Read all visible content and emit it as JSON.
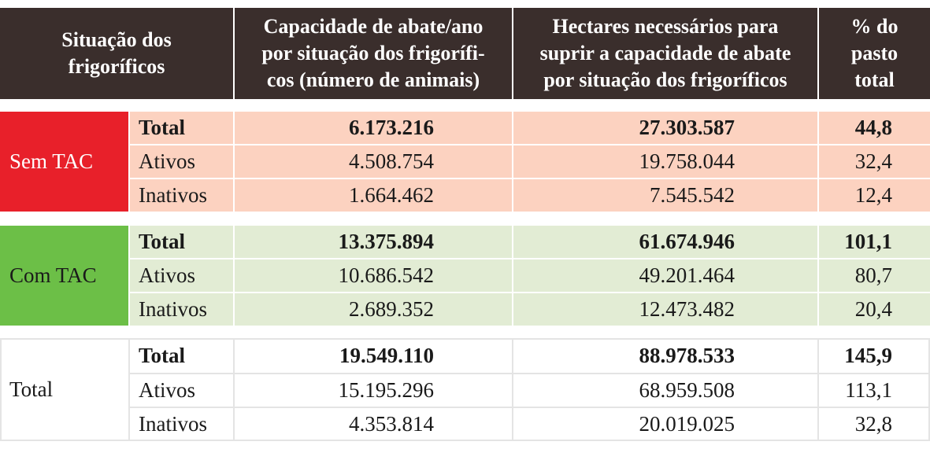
{
  "header": {
    "col1": [
      "Situação dos",
      "frigoríficos"
    ],
    "col2": [
      "Capacidade de abate/ano",
      "por situação dos frigorífi-",
      "cos (número de animais)"
    ],
    "col3": [
      "Hectares necessários para",
      "suprir a capacidade de abate",
      "por situação dos frigoríficos"
    ],
    "col4": [
      "% do",
      "pasto",
      "total"
    ]
  },
  "colors": {
    "header_bg": "#3a2e2c",
    "sem_tac_label": "#e8202a",
    "sem_tac_bg": "#fcd2c0",
    "com_tac_label": "#6cbf47",
    "com_tac_bg": "#e2ecd4",
    "total_bg": "#ffffff"
  },
  "groups": [
    {
      "label": "Sem TAC",
      "rows": [
        {
          "name": "Total",
          "capacidade": "6.173.216",
          "hectares": "27.303.587",
          "pct": "44,8"
        },
        {
          "name": "Ativos",
          "capacidade": "4.508.754",
          "hectares": "19.758.044",
          "pct": "32,4"
        },
        {
          "name": "Inativos",
          "capacidade": "1.664.462",
          "hectares": "7.545.542",
          "pct": "12,4"
        }
      ]
    },
    {
      "label": "Com TAC",
      "rows": [
        {
          "name": "Total",
          "capacidade": "13.375.894",
          "hectares": "61.674.946",
          "pct": "101,1"
        },
        {
          "name": "Ativos",
          "capacidade": "10.686.542",
          "hectares": "49.201.464",
          "pct": "80,7"
        },
        {
          "name": "Inativos",
          "capacidade": "2.689.352",
          "hectares": "12.473.482",
          "pct": "20,4"
        }
      ]
    },
    {
      "label": "Total",
      "rows": [
        {
          "name": "Total",
          "capacidade": "19.549.110",
          "hectares": "88.978.533",
          "pct": "145,9"
        },
        {
          "name": "Ativos",
          "capacidade": "15.195.296",
          "hectares": "68.959.508",
          "pct": "113,1"
        },
        {
          "name": "Inativos",
          "capacidade": "4.353.814",
          "hectares": "20.019.025",
          "pct": "32,8"
        }
      ]
    }
  ]
}
